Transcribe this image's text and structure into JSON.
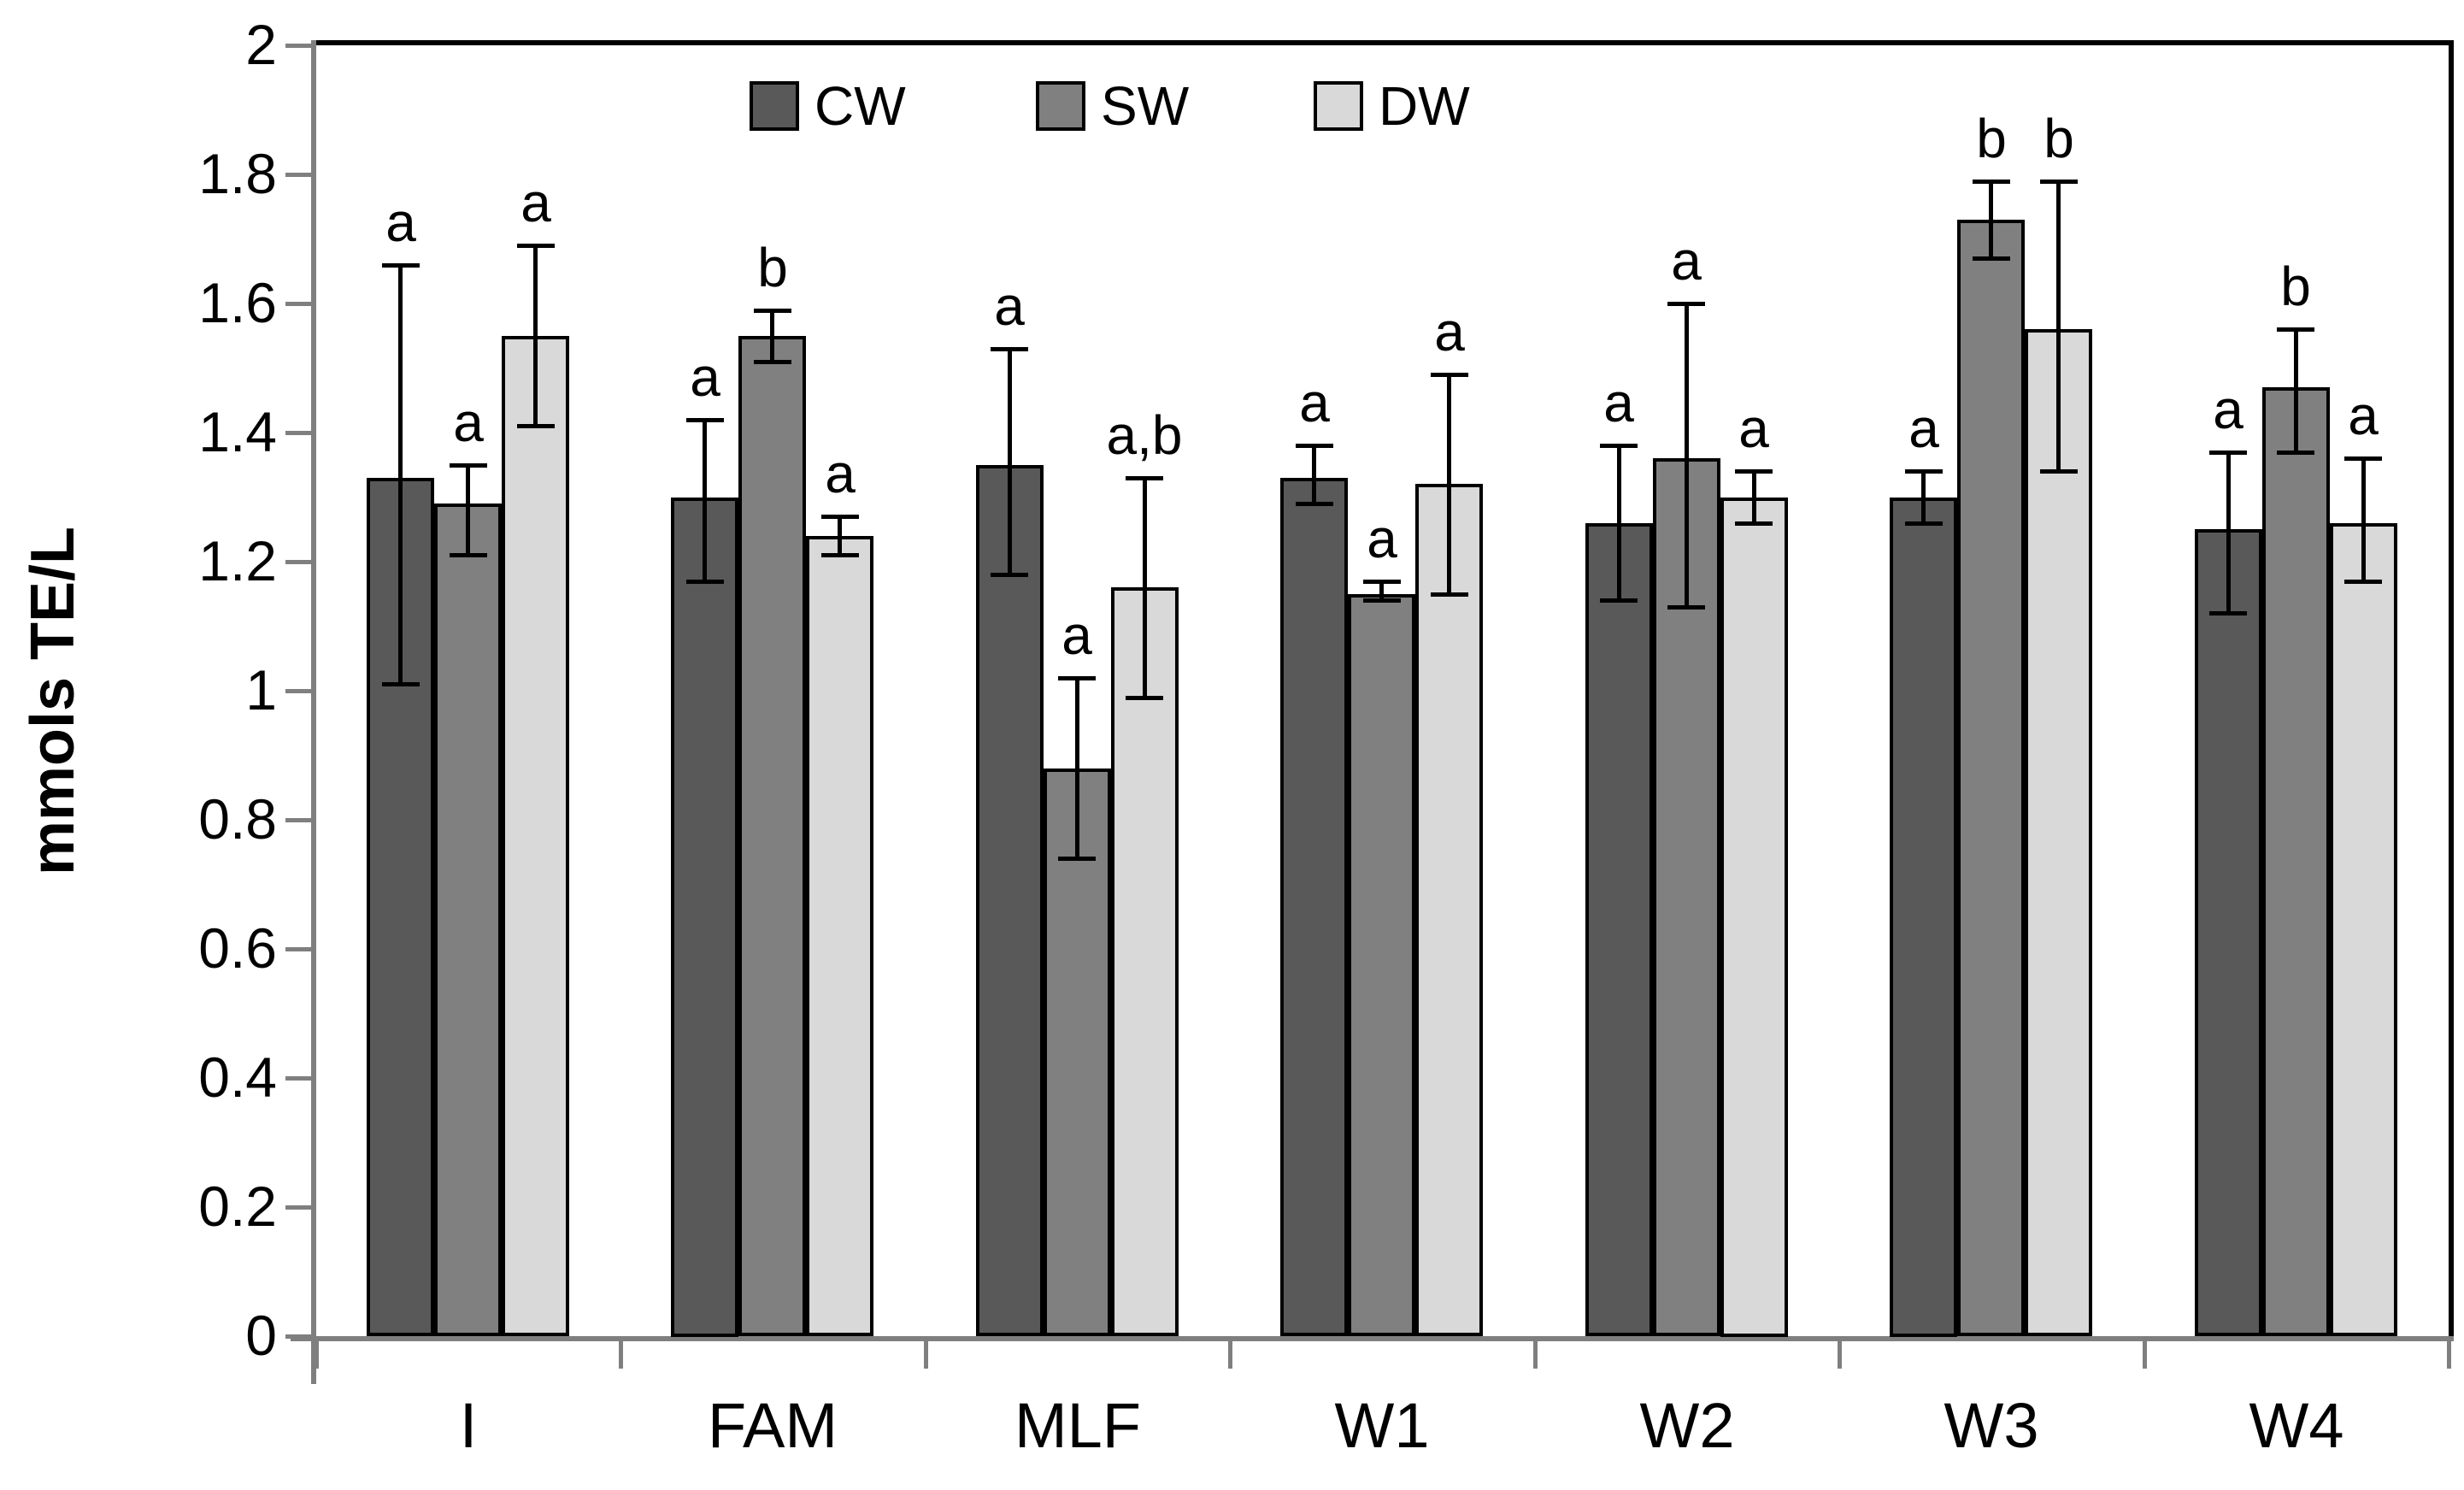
{
  "chart_data": {
    "type": "bar",
    "title": "",
    "xlabel": "",
    "ylabel": "mmols TE/L",
    "ylim": [
      0,
      2
    ],
    "ytick_step": 0.2,
    "ytick_labels": [
      "0",
      "0.2",
      "0.4",
      "0.6",
      "0.8",
      "1",
      "1.2",
      "1.4",
      "1.6",
      "1.8",
      "2"
    ],
    "grid": false,
    "legend_position": "top-center",
    "categories": [
      "I",
      "FAM",
      "MLF",
      "W1",
      "W2",
      "W3",
      "W4"
    ],
    "series": [
      {
        "name": "CW",
        "color": "#595959",
        "values": [
          1.33,
          1.3,
          1.35,
          1.33,
          1.26,
          1.3,
          1.25
        ],
        "error_low": [
          1.01,
          1.17,
          1.18,
          1.29,
          1.14,
          1.26,
          1.12
        ],
        "error_high": [
          1.66,
          1.42,
          1.53,
          1.38,
          1.38,
          1.34,
          1.37
        ],
        "letters": [
          "a",
          "a",
          "a",
          "a",
          "a",
          "a",
          "a"
        ]
      },
      {
        "name": "SW",
        "color": "#808080",
        "values": [
          1.29,
          1.55,
          0.88,
          1.15,
          1.36,
          1.73,
          1.47
        ],
        "error_low": [
          1.21,
          1.51,
          0.74,
          1.14,
          1.13,
          1.67,
          1.37
        ],
        "error_high": [
          1.35,
          1.59,
          1.02,
          1.17,
          1.6,
          1.79,
          1.56
        ],
        "letters": [
          "a",
          "b",
          "a",
          "a",
          "a",
          "b",
          "b"
        ]
      },
      {
        "name": "DW",
        "color": "#d9d9d9",
        "values": [
          1.55,
          1.24,
          1.16,
          1.32,
          1.3,
          1.56,
          1.26
        ],
        "error_low": [
          1.41,
          1.21,
          0.99,
          1.15,
          1.26,
          1.34,
          1.17
        ],
        "error_high": [
          1.69,
          1.27,
          1.33,
          1.49,
          1.34,
          1.79,
          1.36
        ],
        "letters": [
          "a",
          "a",
          "a,b",
          "a",
          "a",
          "b",
          "a"
        ]
      }
    ]
  }
}
